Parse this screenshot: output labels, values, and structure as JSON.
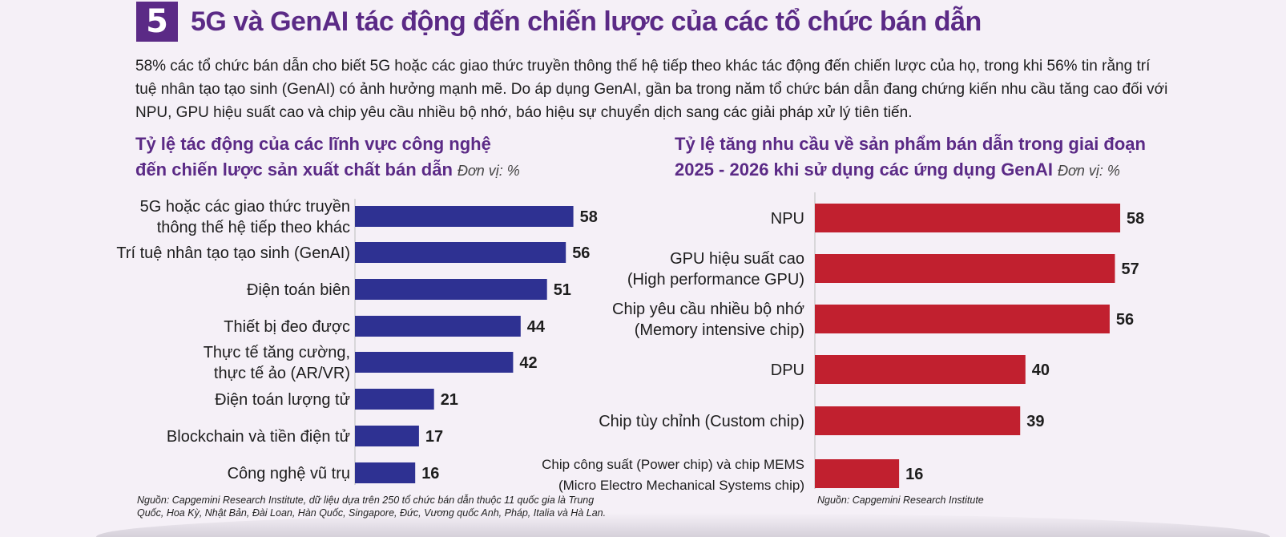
{
  "header": {
    "number": "5",
    "title": "5G và GenAI tác động đến chiến lược của các tổ chức bán dẫn"
  },
  "intro": "58% các tổ chức bán dẫn cho biết 5G hoặc các giao thức truyền thông thế hệ tiếp theo khác tác động đến chiến lược của họ, trong khi 56% tin rằng trí tuệ nhân tạo tạo sinh (GenAI) có ảnh hưởng mạnh mẽ. Do áp dụng GenAI, gần ba trong năm tổ chức bán dẫn đang chứng kiến nhu cầu tăng cao đối với NPU, GPU hiệu suất cao và chip yêu cầu nhiều bộ nhớ, báo hiệu sự chuyển dịch sang các giải pháp xử lý tiên tiến.",
  "left_chart": {
    "title_line1": "Tỷ lệ tác động của các lĩnh vực công nghệ",
    "title_line2": "đến chiến lược sản xuất chất bán dẫn",
    "unit": "Đơn vị: %",
    "source_line1": "Nguồn: Capgemini Research Institute, dữ liệu dựa trên 250 tổ chức bán dẫn thuộc 11 quốc gia là Trung",
    "source_line2": "Quốc, Hoa Kỳ, Nhật Bản, Đài Loan, Hàn Quốc, Singapore, Đức, Vương quốc Anh, Pháp, Italia và Hà Lan."
  },
  "right_chart": {
    "title_line1": "Tỷ lệ tăng nhu cầu về sản phẩm bán dẫn trong giai đoạn",
    "title_line2": "2025 - 2026 khi sử dụng các ứng dụng GenAI",
    "unit": "Đơn vị: %",
    "source": "Nguồn: Capgemini Research Institute"
  },
  "colors": {
    "accent": "#5b2a86",
    "left_bar": "#2e3192",
    "right_bar": "#c1202f"
  },
  "chart_data": [
    {
      "type": "bar",
      "orientation": "horizontal",
      "title": "Tỷ lệ tác động của các lĩnh vực công nghệ đến chiến lược sản xuất chất bán dẫn",
      "categories": [
        [
          "5G hoặc các giao thức truyền",
          "thông thế hệ tiếp theo khác"
        ],
        [
          "Trí tuệ nhân tạo tạo sinh (GenAI)"
        ],
        [
          "Điện toán biên"
        ],
        [
          "Thiết bị đeo được"
        ],
        [
          "Thực tế tăng cường,",
          "thực tế ảo (AR/VR)"
        ],
        [
          "Điện toán lượng tử"
        ],
        [
          "Blockchain và tiền điện tử"
        ],
        [
          "Công nghệ vũ trụ"
        ]
      ],
      "values": [
        58,
        56,
        51,
        44,
        42,
        21,
        17,
        16
      ]
    },
    {
      "type": "bar",
      "orientation": "horizontal",
      "title": "Tỷ lệ tăng nhu cầu về sản phẩm bán dẫn trong giai đoạn 2025 - 2026 khi sử dụng các ứng dụng GenAI",
      "categories": [
        [
          "NPU"
        ],
        [
          "GPU hiệu suất cao",
          "(High performance GPU)"
        ],
        [
          "Chip yêu cầu nhiều bộ nhớ",
          "(Memory intensive chip)"
        ],
        [
          "DPU"
        ],
        [
          "Chip tùy chỉnh (Custom chip)"
        ],
        [
          "Chip công suất (Power chip) và chip MEMS",
          "(Micro Electro Mechanical Systems chip)"
        ]
      ],
      "values": [
        58,
        57,
        56,
        40,
        39,
        16
      ]
    }
  ]
}
